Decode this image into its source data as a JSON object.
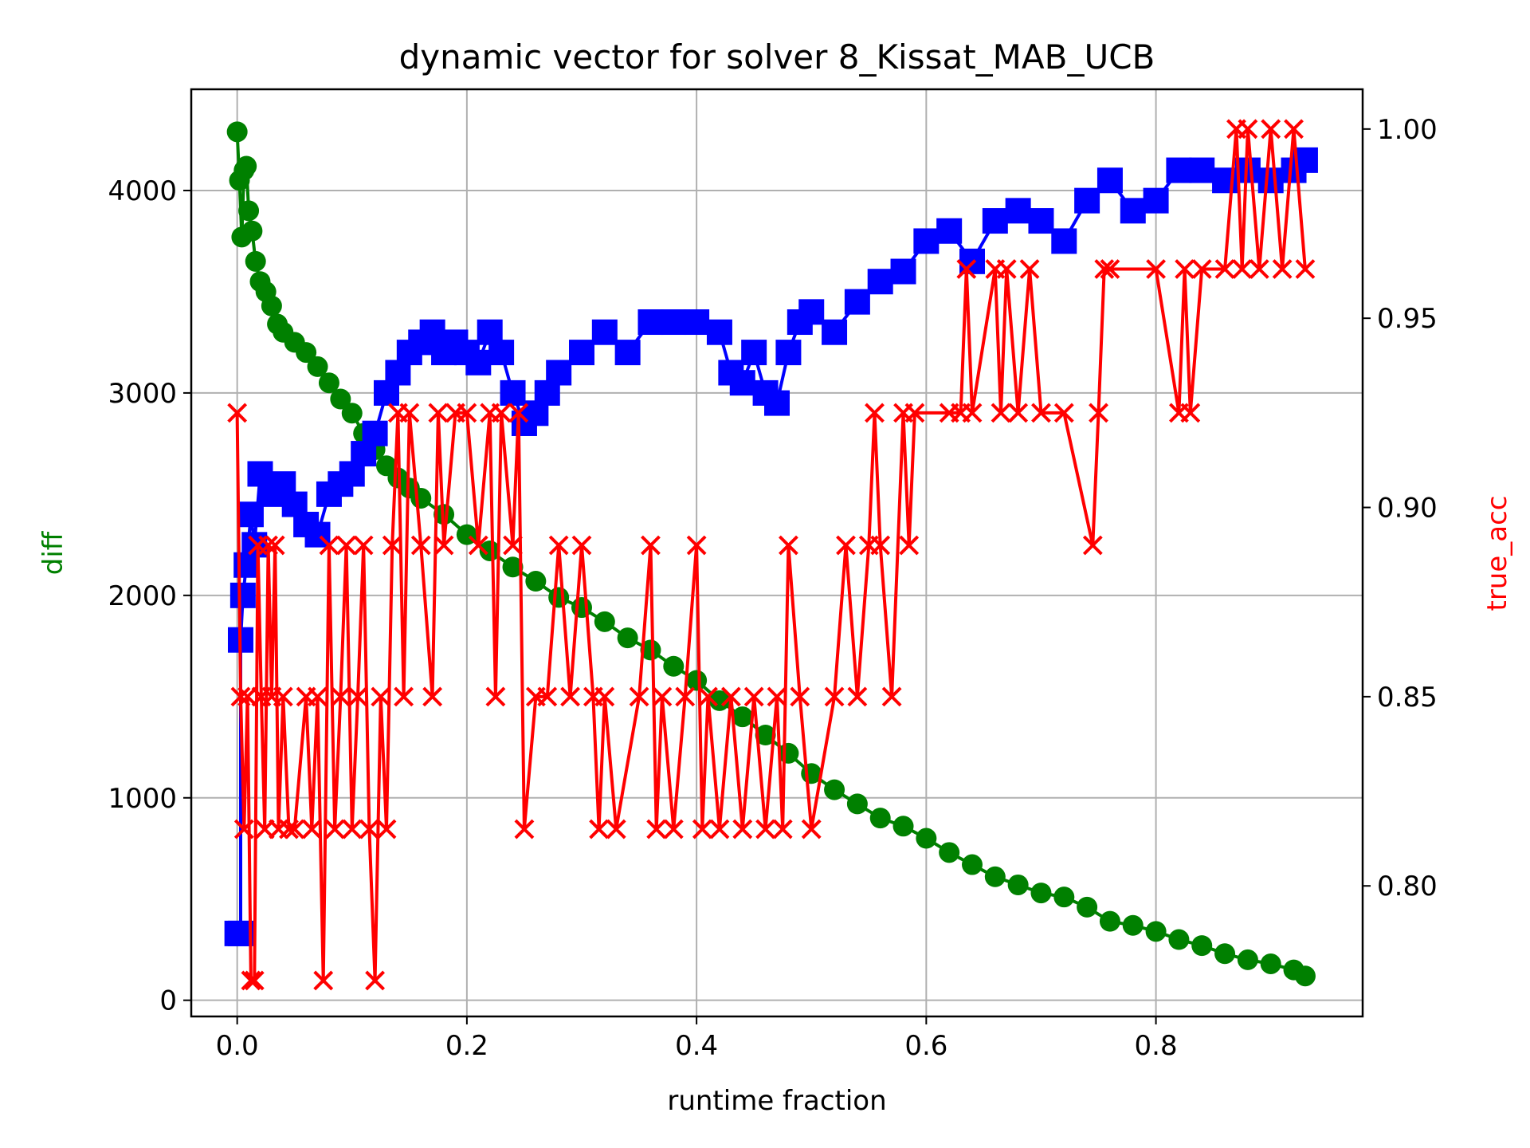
{
  "chart_data": {
    "type": "line",
    "title": "dynamic vector for solver 8_Kissat_MAB_UCB",
    "xlabel": "runtime fraction",
    "ylabel_left": "diff",
    "ylabel_right": "true_acc",
    "xlim": [
      -0.04,
      0.98
    ],
    "ylim_left": [
      -80,
      4500
    ],
    "ylim_right": [
      0.7655,
      1.0105
    ],
    "xticks": [
      "0.0",
      "0.2",
      "0.4",
      "0.6",
      "0.8"
    ],
    "xtick_values": [
      0,
      0.2,
      0.4,
      0.6,
      0.8
    ],
    "yticks_left": [
      "0",
      "1000",
      "2000",
      "3000",
      "4000"
    ],
    "ytick_values_left": [
      0,
      1000,
      2000,
      3000,
      4000
    ],
    "yticks_right": [
      "0.80",
      "0.85",
      "0.90",
      "0.95",
      "1.00"
    ],
    "ytick_values_right": [
      0.8,
      0.85,
      0.9,
      0.95,
      1.0
    ],
    "grid": true,
    "colors": {
      "diff": "#008000",
      "blue_series": "#0000ff",
      "true_acc": "#ff0000"
    },
    "series": [
      {
        "axis": "left",
        "marker": "circle",
        "color": "#008000",
        "x": [
          0.0,
          0.002,
          0.004,
          0.006,
          0.008,
          0.01,
          0.013,
          0.016,
          0.02,
          0.025,
          0.03,
          0.035,
          0.04,
          0.05,
          0.06,
          0.07,
          0.08,
          0.09,
          0.1,
          0.11,
          0.12,
          0.13,
          0.14,
          0.15,
          0.16,
          0.18,
          0.2,
          0.22,
          0.24,
          0.26,
          0.28,
          0.3,
          0.32,
          0.34,
          0.36,
          0.38,
          0.4,
          0.42,
          0.44,
          0.46,
          0.48,
          0.5,
          0.52,
          0.54,
          0.56,
          0.58,
          0.6,
          0.62,
          0.64,
          0.66,
          0.68,
          0.7,
          0.72,
          0.74,
          0.76,
          0.78,
          0.8,
          0.82,
          0.84,
          0.86,
          0.88,
          0.9,
          0.92,
          0.93
        ],
        "y": [
          4290,
          4050,
          3770,
          4100,
          4120,
          3900,
          3800,
          3650,
          3550,
          3500,
          3430,
          3340,
          3300,
          3250,
          3200,
          3130,
          3050,
          2970,
          2900,
          2800,
          2720,
          2640,
          2580,
          2530,
          2480,
          2400,
          2300,
          2220,
          2140,
          2070,
          1990,
          1940,
          1870,
          1790,
          1730,
          1650,
          1580,
          1480,
          1400,
          1310,
          1220,
          1120,
          1040,
          970,
          900,
          860,
          800,
          730,
          670,
          610,
          570,
          530,
          510,
          460,
          390,
          370,
          340,
          300,
          270,
          230,
          200,
          180,
          150,
          120
        ]
      },
      {
        "axis": "left",
        "marker": "square",
        "color": "#0000ff",
        "x": [
          0.0,
          0.003,
          0.003,
          0.005,
          0.008,
          0.012,
          0.015,
          0.02,
          0.03,
          0.04,
          0.05,
          0.06,
          0.07,
          0.08,
          0.09,
          0.1,
          0.11,
          0.12,
          0.13,
          0.14,
          0.15,
          0.16,
          0.17,
          0.18,
          0.19,
          0.2,
          0.21,
          0.22,
          0.23,
          0.24,
          0.25,
          0.26,
          0.27,
          0.28,
          0.3,
          0.32,
          0.34,
          0.36,
          0.38,
          0.4,
          0.42,
          0.43,
          0.44,
          0.45,
          0.46,
          0.47,
          0.48,
          0.49,
          0.5,
          0.52,
          0.54,
          0.56,
          0.58,
          0.6,
          0.62,
          0.64,
          0.66,
          0.68,
          0.7,
          0.72,
          0.74,
          0.76,
          0.78,
          0.8,
          0.82,
          0.84,
          0.86,
          0.88,
          0.9,
          0.92,
          0.93
        ],
        "y": [
          330,
          330,
          1780,
          2000,
          2150,
          2400,
          2250,
          2600,
          2500,
          2550,
          2450,
          2350,
          2300,
          2500,
          2550,
          2600,
          2700,
          2800,
          3000,
          3100,
          3200,
          3250,
          3300,
          3200,
          3250,
          3200,
          3150,
          3300,
          3200,
          3000,
          2850,
          2900,
          3000,
          3100,
          3200,
          3300,
          3200,
          3350,
          3350,
          3350,
          3300,
          3100,
          3050,
          3200,
          3000,
          2950,
          3200,
          3350,
          3400,
          3300,
          3450,
          3550,
          3600,
          3750,
          3800,
          3650,
          3850,
          3900,
          3850,
          3750,
          3950,
          4050,
          3900,
          3950,
          4100,
          4100,
          4050,
          4100,
          4050,
          4100,
          4150
        ]
      },
      {
        "axis": "right",
        "marker": "x",
        "color": "#ff0000",
        "x": [
          0.0,
          0.003,
          0.006,
          0.009,
          0.012,
          0.015,
          0.018,
          0.021,
          0.024,
          0.027,
          0.03,
          0.033,
          0.036,
          0.04,
          0.045,
          0.05,
          0.06,
          0.065,
          0.07,
          0.075,
          0.08,
          0.085,
          0.09,
          0.095,
          0.1,
          0.105,
          0.11,
          0.115,
          0.12,
          0.125,
          0.13,
          0.135,
          0.14,
          0.145,
          0.15,
          0.16,
          0.17,
          0.175,
          0.18,
          0.19,
          0.2,
          0.21,
          0.22,
          0.225,
          0.23,
          0.24,
          0.245,
          0.25,
          0.26,
          0.27,
          0.28,
          0.29,
          0.3,
          0.31,
          0.315,
          0.32,
          0.33,
          0.35,
          0.36,
          0.365,
          0.37,
          0.38,
          0.39,
          0.4,
          0.405,
          0.41,
          0.42,
          0.43,
          0.44,
          0.45,
          0.46,
          0.47,
          0.475,
          0.48,
          0.49,
          0.5,
          0.52,
          0.53,
          0.54,
          0.55,
          0.555,
          0.56,
          0.57,
          0.58,
          0.585,
          0.59,
          0.62,
          0.63,
          0.635,
          0.64,
          0.66,
          0.665,
          0.67,
          0.68,
          0.69,
          0.7,
          0.72,
          0.745,
          0.75,
          0.755,
          0.76,
          0.8,
          0.82,
          0.825,
          0.83,
          0.84,
          0.86,
          0.87,
          0.875,
          0.88,
          0.89,
          0.9,
          0.91,
          0.92,
          0.93
        ],
        "y": [
          0.925,
          0.85,
          0.815,
          0.85,
          0.775,
          0.775,
          0.89,
          0.85,
          0.815,
          0.89,
          0.85,
          0.89,
          0.815,
          0.85,
          0.815,
          0.815,
          0.85,
          0.815,
          0.85,
          0.775,
          0.89,
          0.815,
          0.85,
          0.89,
          0.815,
          0.85,
          0.89,
          0.815,
          0.775,
          0.85,
          0.815,
          0.89,
          0.925,
          0.85,
          0.925,
          0.89,
          0.85,
          0.925,
          0.89,
          0.925,
          0.925,
          0.89,
          0.925,
          0.85,
          0.925,
          0.89,
          0.925,
          0.815,
          0.85,
          0.85,
          0.89,
          0.85,
          0.89,
          0.85,
          0.815,
          0.85,
          0.815,
          0.85,
          0.89,
          0.815,
          0.85,
          0.815,
          0.85,
          0.89,
          0.815,
          0.85,
          0.815,
          0.85,
          0.815,
          0.85,
          0.815,
          0.85,
          0.815,
          0.89,
          0.85,
          0.815,
          0.85,
          0.89,
          0.85,
          0.89,
          0.925,
          0.89,
          0.85,
          0.925,
          0.89,
          0.925,
          0.925,
          0.925,
          0.963,
          0.925,
          0.963,
          0.925,
          0.963,
          0.925,
          0.963,
          0.925,
          0.925,
          0.89,
          0.925,
          0.963,
          0.963,
          0.963,
          0.925,
          0.963,
          0.925,
          0.963,
          0.963,
          1.0,
          0.963,
          1.0,
          0.963,
          1.0,
          0.963,
          1.0,
          0.963
        ]
      }
    ]
  }
}
